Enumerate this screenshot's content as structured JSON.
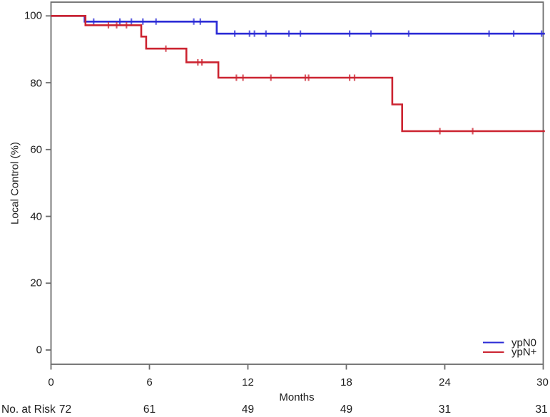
{
  "chart_data": {
    "type": "line",
    "subtype": "kaplan_meier_step",
    "title": "",
    "xlabel": "Months",
    "ylabel": "Local Control (%)",
    "xlim": [
      0,
      30
    ],
    "ylim": [
      0,
      100
    ],
    "xticks": [
      0,
      6,
      12,
      18,
      24,
      30
    ],
    "yticks": [
      100,
      80,
      60,
      40,
      20,
      0
    ],
    "x_tick_labels": [
      "0",
      "6",
      "12",
      "18",
      "24",
      "30"
    ],
    "y_tick_labels": [
      "100",
      "80",
      "60",
      "40",
      "20",
      "0"
    ],
    "grid": false,
    "frame_color": "#6b6b6b",
    "text_color": "#1c1c1c",
    "series": [
      {
        "name": "ypN0",
        "color": "#2b2bd6",
        "steps": [
          [
            0,
            100
          ],
          [
            2.05,
            98.3
          ],
          [
            10.1,
            94.7
          ]
        ],
        "end_time": 30.1,
        "censors": [
          [
            2.6,
            98.3
          ],
          [
            4.2,
            98.3
          ],
          [
            4.9,
            98.3
          ],
          [
            5.6,
            98.3
          ],
          [
            6.4,
            98.3
          ],
          [
            8.7,
            98.3
          ],
          [
            9.1,
            98.3
          ],
          [
            11.2,
            94.7
          ],
          [
            12.1,
            94.7
          ],
          [
            12.4,
            94.7
          ],
          [
            13.1,
            94.7
          ],
          [
            14.5,
            94.7
          ],
          [
            15.2,
            94.7
          ],
          [
            18.2,
            94.7
          ],
          [
            19.5,
            94.7
          ],
          [
            21.8,
            94.7
          ],
          [
            26.7,
            94.7
          ],
          [
            28.2,
            94.7
          ],
          [
            29.9,
            94.7
          ]
        ]
      },
      {
        "name": "ypN+",
        "color": "#cc2431",
        "steps": [
          [
            0,
            100
          ],
          [
            2.1,
            97.2
          ],
          [
            5.5,
            93.8
          ],
          [
            5.8,
            90.2
          ],
          [
            8.25,
            86.1
          ],
          [
            10.2,
            81.5
          ],
          [
            20.8,
            73.5
          ],
          [
            21.4,
            65.5
          ]
        ],
        "end_time": 30.1,
        "censors": [
          [
            3.5,
            97.2
          ],
          [
            4.0,
            97.2
          ],
          [
            4.6,
            97.2
          ],
          [
            7.0,
            90.2
          ],
          [
            8.95,
            86.1
          ],
          [
            9.2,
            86.1
          ],
          [
            11.3,
            81.5
          ],
          [
            11.7,
            81.5
          ],
          [
            13.4,
            81.5
          ],
          [
            15.5,
            81.5
          ],
          [
            15.7,
            81.5
          ],
          [
            18.2,
            81.5
          ],
          [
            18.5,
            81.5
          ],
          [
            23.7,
            65.5
          ],
          [
            25.7,
            65.5
          ]
        ]
      }
    ],
    "legend": {
      "position": "bottom-right",
      "entries": [
        "ypN0",
        "ypN+"
      ]
    },
    "at_risk": {
      "label": "No. at Risk",
      "values": [
        "72",
        "61",
        "49",
        "49",
        "31",
        "31"
      ]
    }
  }
}
